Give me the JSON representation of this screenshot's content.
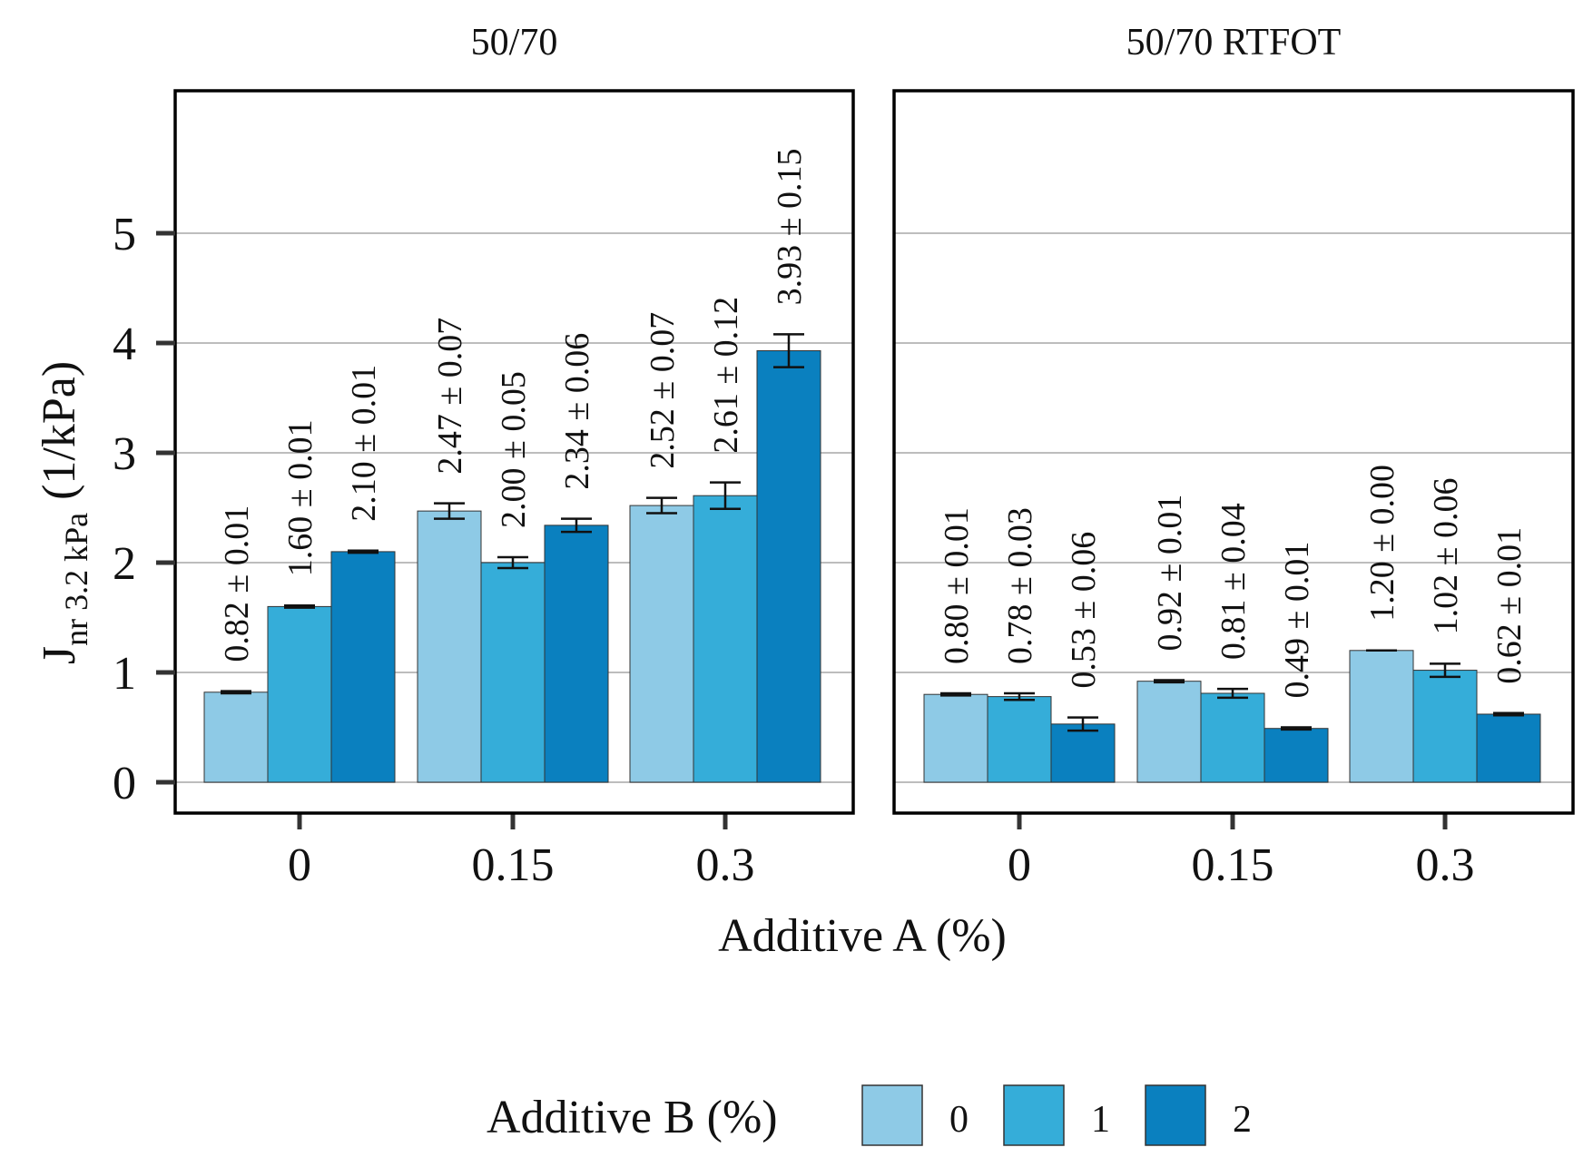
{
  "chart_data": {
    "type": "bar",
    "xlabel": "Additive A (%)",
    "ylabel": {
      "main": "J",
      "subscript": "nr 3.2 kPa",
      "unit": "(1/kPa)"
    },
    "ylim": [
      0,
      6.3
    ],
    "yticks": [
      "0",
      "1",
      "2",
      "3",
      "4",
      "5"
    ],
    "grid": "horizontal",
    "legend": {
      "title": "Additive B (%)",
      "position": "bottom",
      "entries": [
        "0",
        "1",
        "2"
      ]
    },
    "colors": [
      "#8ECAE6",
      "#35ADD9",
      "#0A80BF"
    ],
    "facets": [
      {
        "title": "50/70",
        "categories": [
          "0",
          "0.15",
          "0.3"
        ],
        "series": [
          {
            "name": "0",
            "values": [
              0.82,
              2.47,
              2.52
            ],
            "errors": [
              0.01,
              0.07,
              0.07
            ],
            "labels": [
              "0.82 ± 0.01",
              "2.47 ± 0.07",
              "2.52 ± 0.07"
            ]
          },
          {
            "name": "1",
            "values": [
              1.6,
              2.0,
              2.61
            ],
            "errors": [
              0.01,
              0.05,
              0.12
            ],
            "labels": [
              "1.60 ± 0.01",
              "2.00 ± 0.05",
              "2.61 ± 0.12"
            ]
          },
          {
            "name": "2",
            "values": [
              2.1,
              2.34,
              3.93
            ],
            "errors": [
              0.01,
              0.06,
              0.15
            ],
            "labels": [
              "2.10 ± 0.01",
              "2.34 ± 0.06",
              "3.93 ± 0.15"
            ]
          }
        ]
      },
      {
        "title": "50/70 RTFOT",
        "categories": [
          "0",
          "0.15",
          "0.3"
        ],
        "series": [
          {
            "name": "0",
            "values": [
              0.8,
              0.92,
              1.2
            ],
            "errors": [
              0.01,
              0.01,
              0.0
            ],
            "labels": [
              "0.80 ± 0.01",
              "0.92 ± 0.01",
              "1.20 ± 0.00"
            ]
          },
          {
            "name": "1",
            "values": [
              0.78,
              0.81,
              1.02
            ],
            "errors": [
              0.03,
              0.04,
              0.06
            ],
            "labels": [
              "0.78 ± 0.03",
              "0.81 ± 0.04",
              "1.02 ± 0.06"
            ]
          },
          {
            "name": "2",
            "values": [
              0.53,
              0.49,
              0.62
            ],
            "errors": [
              0.06,
              0.01,
              0.01
            ],
            "labels": [
              "0.53 ± 0.06",
              "0.49 ± 0.01",
              "0.62 ± 0.01"
            ]
          }
        ]
      }
    ]
  }
}
